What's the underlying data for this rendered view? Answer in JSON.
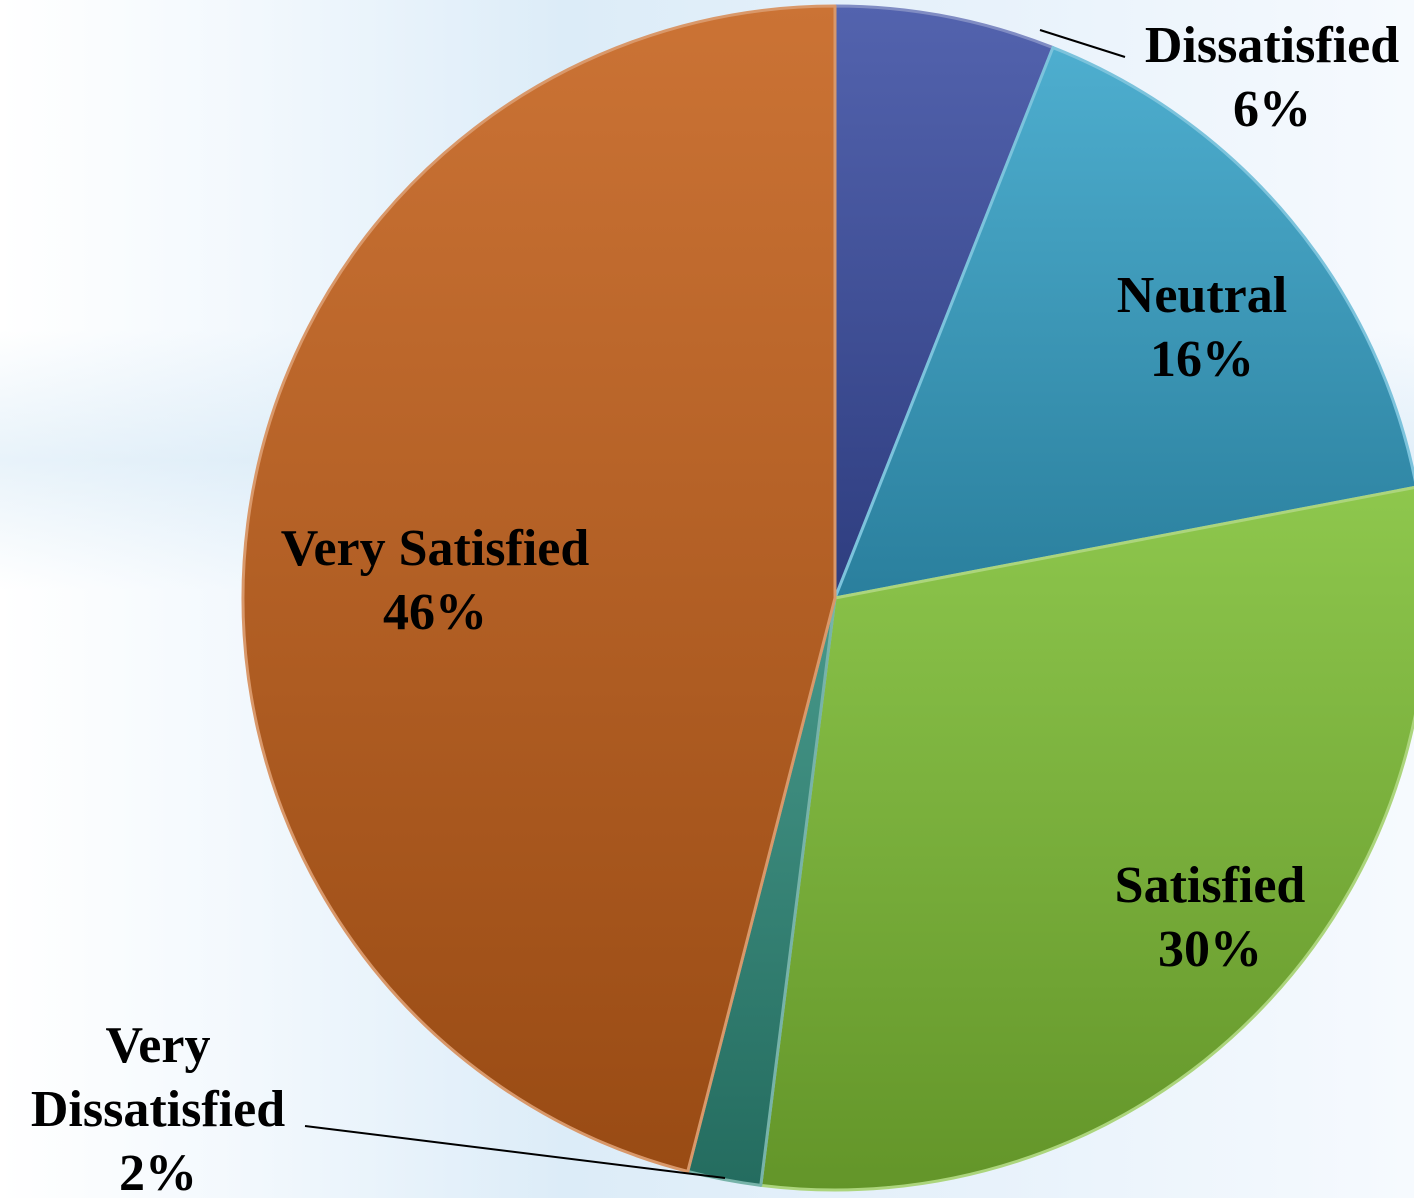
{
  "chart_data": {
    "type": "pie",
    "title": "",
    "slices": [
      {
        "label": "Dissatisfied",
        "value": 6,
        "value_label": "6%",
        "color": "#3b4ea3"
      },
      {
        "label": "Neutral",
        "value": 16,
        "value_label": "16%",
        "color": "#36a3c9"
      },
      {
        "label": "Satisfied",
        "value": 30,
        "value_label": "30%",
        "color": "#7fbf35"
      },
      {
        "label": "Very Dissatisfied",
        "value": 2,
        "value_label": "2%",
        "color": "#2e8a7a"
      },
      {
        "label": "Very Satisfied",
        "value": 46,
        "value_label": "46%",
        "color": "#c4601a"
      }
    ],
    "start_angle_deg": 0,
    "direction": "clockwise",
    "legend": "none",
    "data_labels": "category and percentage"
  }
}
